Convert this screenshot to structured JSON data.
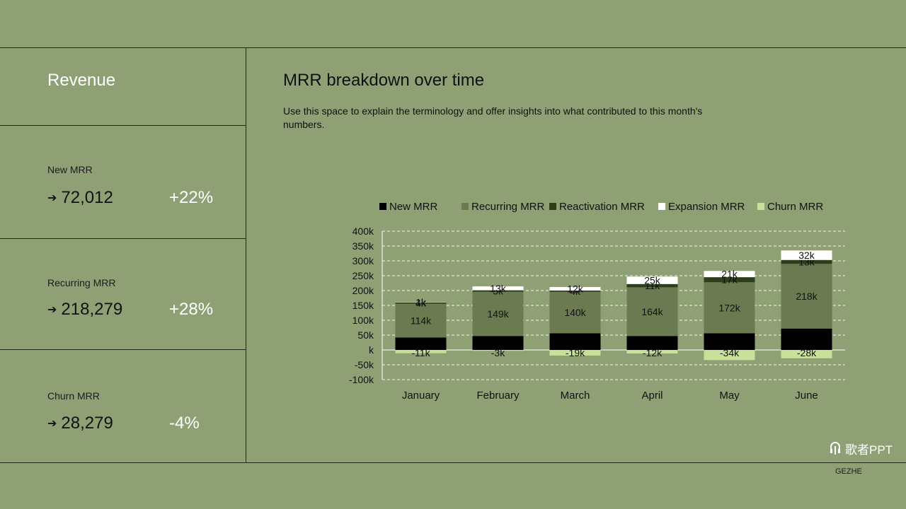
{
  "sidebar": {
    "title": "Revenue",
    "metrics": [
      {
        "label": "New MRR",
        "value": "72,012",
        "delta": "+22%"
      },
      {
        "label": "Recurring MRR",
        "value": "218,279",
        "delta": "+28%"
      },
      {
        "label": "Churn MRR",
        "value": "28,279",
        "delta": "-4%"
      }
    ]
  },
  "main": {
    "title": "MRR breakdown over time",
    "description": "Use this space to explain the terminology and offer insights into what contributed to this month's numbers."
  },
  "brand": {
    "logo_text": "歌者PPT",
    "footer": "GEZHE"
  },
  "colors": {
    "background": "#8fa075",
    "new": "#000000",
    "recurring": "#6b7a50",
    "reactivation": "#2e3d1a",
    "expansion": "#ffffff",
    "churn": "#c8e09a"
  },
  "chart_data": {
    "type": "bar",
    "stacked": true,
    "categories": [
      "January",
      "February",
      "March",
      "April",
      "May",
      "June"
    ],
    "series": [
      {
        "name": "New MRR",
        "values": [
          42,
          47,
          56,
          47,
          56,
          72
        ],
        "labels": [
          "",
          "",
          "",
          "",
          "",
          ""
        ]
      },
      {
        "name": "Recurring MRR",
        "values": [
          114,
          149,
          140,
          164,
          172,
          218
        ],
        "labels": [
          "114k",
          "149k",
          "140k",
          "164k",
          "172k",
          "218k"
        ]
      },
      {
        "name": "Reactivation MRR",
        "values": [
          4,
          5,
          4,
          11,
          17,
          13
        ],
        "labels": [
          "4k",
          "5k",
          "4k",
          "11k",
          "17k",
          "13k"
        ]
      },
      {
        "name": "Expansion MRR",
        "values": [
          1,
          13,
          12,
          25,
          21,
          32
        ],
        "labels": [
          "1k",
          "13k",
          "12k",
          "25k",
          "21k",
          "32k"
        ]
      },
      {
        "name": "Churn MRR",
        "values": [
          -11,
          -3,
          -19,
          -12,
          -34,
          -28
        ],
        "labels": [
          "-11k",
          "-3k",
          "-19k",
          "-12k",
          "-34k",
          "-28k"
        ]
      }
    ],
    "ylim": [
      -100,
      400
    ],
    "yticks": [
      "-100k",
      "-50k",
      "k",
      "50k",
      "100k",
      "150k",
      "200k",
      "250k",
      "300k",
      "350k",
      "400k"
    ],
    "grid": true,
    "legend_position": "top"
  }
}
